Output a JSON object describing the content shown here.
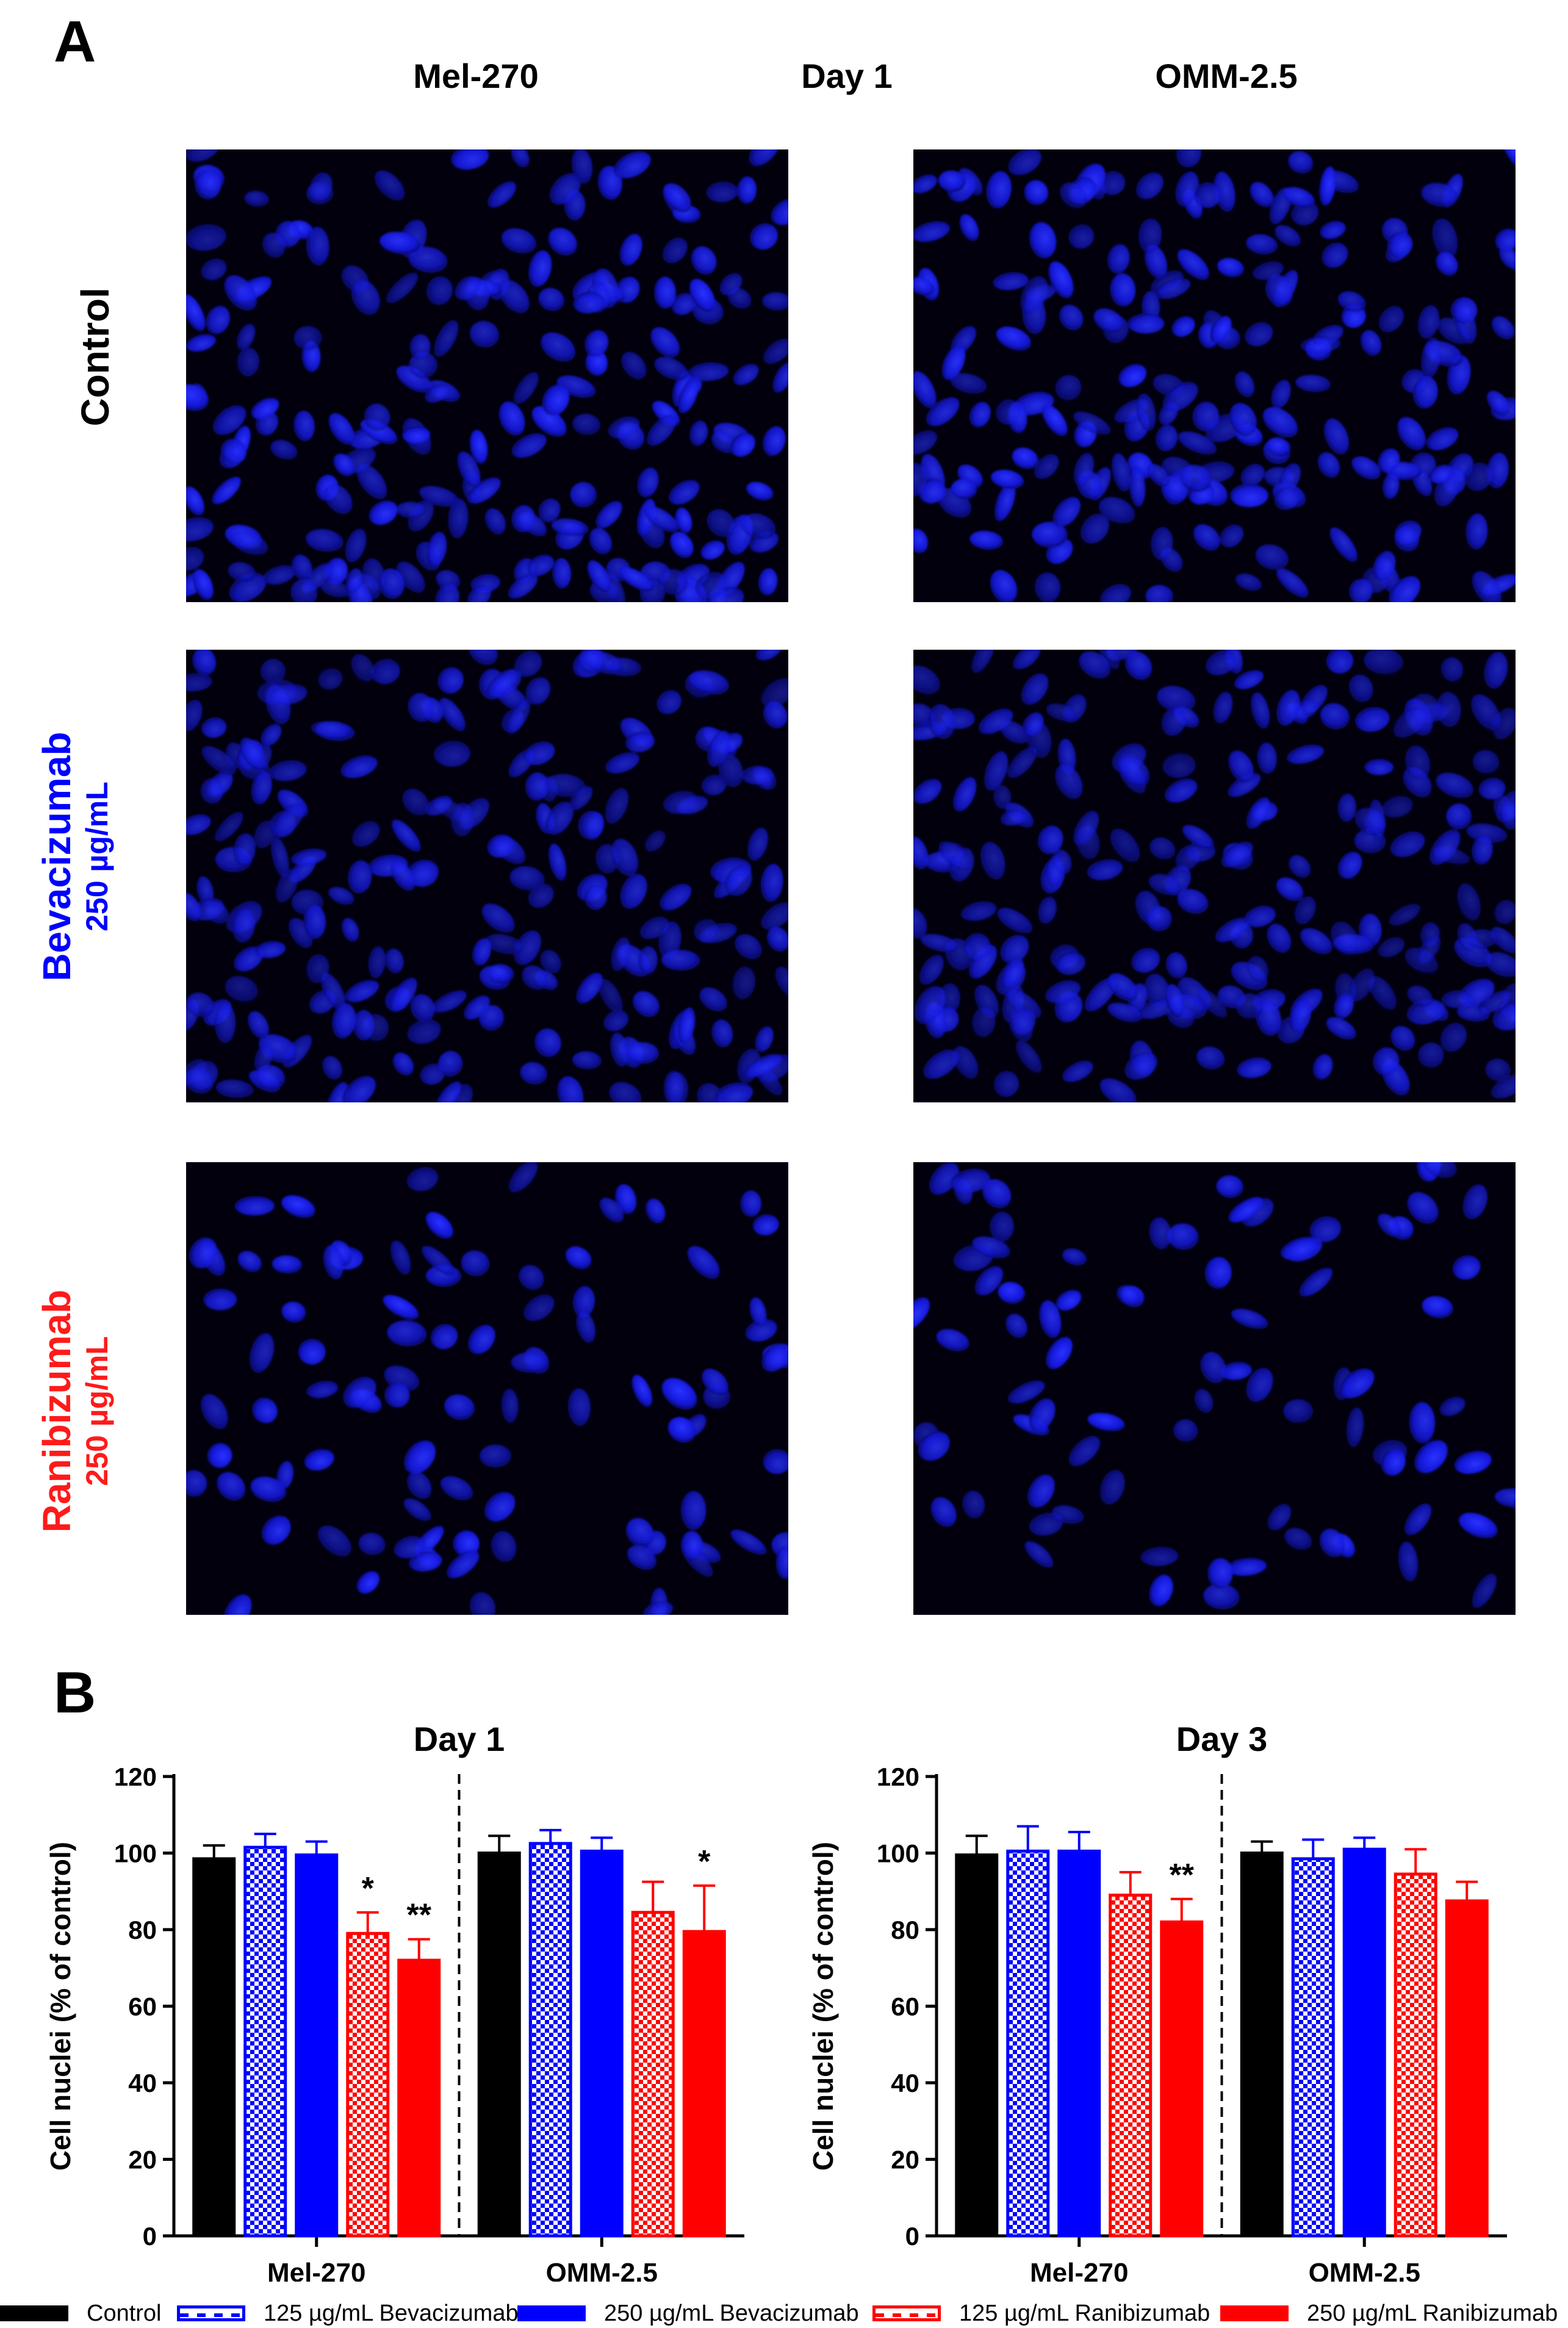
{
  "panel_a": {
    "letter": "A",
    "columns": [
      "Mel-270",
      "Day 1",
      "OMM-2.5"
    ],
    "rows": [
      {
        "line1": "Control",
        "line2": "",
        "color": "#000000"
      },
      {
        "line1": "Bevacizumab",
        "line2": "250 µg/mL",
        "color": "#0000ff"
      },
      {
        "line1": "Ranibizumab",
        "line2": "250 µg/mL",
        "color": "#ff1a1a"
      }
    ]
  },
  "panel_b": {
    "letter": "B"
  },
  "chart_data": [
    {
      "type": "bar",
      "title": "Day 1",
      "ylabel": "Cell nuclei (% of control)",
      "xlabel": "",
      "ylim": [
        0,
        120
      ],
      "yticks": [
        0,
        20,
        40,
        60,
        80,
        100,
        120
      ],
      "categories": [
        "Mel-270",
        "OMM-2.5"
      ],
      "series": [
        {
          "name": "Control",
          "values": [
            98.5,
            100
          ],
          "errors": [
            3.5,
            4.5
          ],
          "color": "#000000",
          "pattern": "solid"
        },
        {
          "name": "125 µg/mL Bevacizumab",
          "values": [
            101.5,
            102.5
          ],
          "errors": [
            3.5,
            3.5
          ],
          "color": "#0000ff",
          "pattern": "checker"
        },
        {
          "name": "250 µg/mL Bevacizumab",
          "values": [
            99.5,
            100.5
          ],
          "errors": [
            3.5,
            3.5
          ],
          "color": "#0000ff",
          "pattern": "solid"
        },
        {
          "name": "125 µg/mL Ranibizumab",
          "values": [
            79,
            84.5
          ],
          "errors": [
            5.5,
            8
          ],
          "color": "#ff0000",
          "pattern": "checker"
        },
        {
          "name": "250 µg/mL Ranibizumab",
          "values": [
            72,
            79.5
          ],
          "errors": [
            5.5,
            12
          ],
          "color": "#ff0000",
          "pattern": "solid"
        }
      ],
      "annotations": [
        {
          "category": "Mel-270",
          "series": 3,
          "text": "*"
        },
        {
          "category": "Mel-270",
          "series": 4,
          "text": "**"
        },
        {
          "category": "OMM-2.5",
          "series": 4,
          "text": "*"
        }
      ]
    },
    {
      "type": "bar",
      "title": "Day 3",
      "ylabel": "Cell nuclei (% of control)",
      "xlabel": "",
      "ylim": [
        0,
        120
      ],
      "yticks": [
        0,
        20,
        40,
        60,
        80,
        100,
        120
      ],
      "categories": [
        "Mel-270",
        "OMM-2.5"
      ],
      "series": [
        {
          "name": "Control",
          "values": [
            99.5,
            100
          ],
          "errors": [
            5,
            3
          ],
          "color": "#000000",
          "pattern": "solid"
        },
        {
          "name": "125 µg/mL Bevacizumab",
          "values": [
            100.5,
            98.5
          ],
          "errors": [
            6.5,
            5
          ],
          "color": "#0000ff",
          "pattern": "checker"
        },
        {
          "name": "250 µg/mL Bevacizumab",
          "values": [
            100.5,
            101
          ],
          "errors": [
            5,
            3
          ],
          "color": "#0000ff",
          "pattern": "solid"
        },
        {
          "name": "125 µg/mL Ranibizumab",
          "values": [
            89,
            94.5
          ],
          "errors": [
            6,
            6.5
          ],
          "color": "#ff0000",
          "pattern": "checker"
        },
        {
          "name": "250 µg/mL Ranibizumab",
          "values": [
            82,
            87.5
          ],
          "errors": [
            6,
            5
          ],
          "color": "#ff0000",
          "pattern": "solid"
        }
      ],
      "annotations": [
        {
          "category": "Mel-270",
          "series": 4,
          "text": "**"
        }
      ]
    }
  ],
  "legend": [
    {
      "label": "Control",
      "color": "#000000",
      "pattern": "solid"
    },
    {
      "label": "125 µg/mL Bevacizumab",
      "color": "#0000ff",
      "pattern": "checker"
    },
    {
      "label": "250 µg/mL Bevacizumab",
      "color": "#0000ff",
      "pattern": "solid"
    },
    {
      "label": "125 µg/mL Ranibizumab",
      "color": "#ff0000",
      "pattern": "checker"
    },
    {
      "label": "250 µg/mL Ranibizumab",
      "color": "#ff0000",
      "pattern": "solid"
    }
  ]
}
